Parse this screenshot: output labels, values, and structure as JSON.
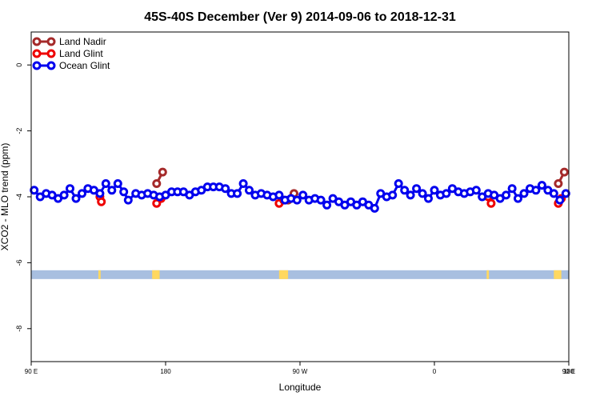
{
  "chart_data": {
    "type": "line",
    "title": "45S-40S December (Ver 9)   2014-09-06 to 2018-12-31",
    "xlabel": "Longitude",
    "ylabel": "XCO2 - MLO trend (ppm)",
    "xlim": [
      90,
      450
    ],
    "ylim": [
      -9,
      1
    ],
    "x_ticks": [
      {
        "value": 90,
        "label": "90 E"
      },
      {
        "value": 180,
        "label": "180"
      },
      {
        "value": 270,
        "label": "90 W"
      },
      {
        "value": 360,
        "label": "0"
      },
      {
        "value": 450,
        "label": "90 E"
      },
      {
        "value": 540,
        "label": "180"
      }
    ],
    "y_ticks": [
      {
        "value": 0,
        "label": "0"
      },
      {
        "value": -2,
        "label": "-2"
      },
      {
        "value": -4,
        "label": "-4"
      },
      {
        "value": -6,
        "label": "-6"
      },
      {
        "value": -8,
        "label": "-8"
      }
    ],
    "legend_position": "top-left",
    "series": [
      {
        "name": "Land Nadir",
        "color": "#a52a2a",
        "segments": [
          [
            {
              "x": 174,
              "y": -3.6
            },
            {
              "x": 178,
              "y": -3.25
            }
          ],
          [
            {
              "x": 262,
              "y": -4.1
            },
            {
              "x": 266,
              "y": -3.9
            }
          ],
          [
            {
              "x": 443,
              "y": -3.6
            },
            {
              "x": 447,
              "y": -3.25
            }
          ]
        ]
      },
      {
        "name": "Land Glint",
        "color": "#ee0000",
        "segments": [
          [
            {
              "x": 136,
              "y": -4.0
            },
            {
              "x": 137,
              "y": -4.15
            }
          ],
          [
            {
              "x": 174,
              "y": -4.2
            },
            {
              "x": 177,
              "y": -4.05
            }
          ],
          [
            {
              "x": 256,
              "y": -4.2
            },
            {
              "x": 259,
              "y": -4.1
            }
          ],
          [
            {
              "x": 396,
              "y": -4.0
            },
            {
              "x": 398,
              "y": -4.2
            }
          ],
          [
            {
              "x": 443,
              "y": -4.2
            },
            {
              "x": 445,
              "y": -4.05
            }
          ]
        ]
      },
      {
        "name": "Ocean Glint",
        "color": "#0000ee",
        "points": [
          {
            "x": 92,
            "y": -3.8
          },
          {
            "x": 96,
            "y": -4.0
          },
          {
            "x": 100,
            "y": -3.9
          },
          {
            "x": 104,
            "y": -3.95
          },
          {
            "x": 108,
            "y": -4.05
          },
          {
            "x": 112,
            "y": -3.95
          },
          {
            "x": 116,
            "y": -3.75
          },
          {
            "x": 120,
            "y": -4.05
          },
          {
            "x": 124,
            "y": -3.9
          },
          {
            "x": 128,
            "y": -3.75
          },
          {
            "x": 132,
            "y": -3.8
          },
          {
            "x": 136,
            "y": -3.9
          },
          {
            "x": 140,
            "y": -3.6
          },
          {
            "x": 144,
            "y": -3.8
          },
          {
            "x": 148,
            "y": -3.6
          },
          {
            "x": 152,
            "y": -3.85
          },
          {
            "x": 155,
            "y": -4.1
          },
          {
            "x": 160,
            "y": -3.9
          },
          {
            "x": 164,
            "y": -3.95
          },
          {
            "x": 168,
            "y": -3.9
          },
          {
            "x": 172,
            "y": -3.95
          },
          {
            "x": 176,
            "y": -4.0
          },
          {
            "x": 180,
            "y": -3.95
          },
          {
            "x": 184,
            "y": -3.85
          },
          {
            "x": 188,
            "y": -3.85
          },
          {
            "x": 192,
            "y": -3.85
          },
          {
            "x": 196,
            "y": -3.95
          },
          {
            "x": 200,
            "y": -3.85
          },
          {
            "x": 204,
            "y": -3.8
          },
          {
            "x": 208,
            "y": -3.7
          },
          {
            "x": 212,
            "y": -3.7
          },
          {
            "x": 216,
            "y": -3.7
          },
          {
            "x": 220,
            "y": -3.75
          },
          {
            "x": 224,
            "y": -3.9
          },
          {
            "x": 228,
            "y": -3.9
          },
          {
            "x": 232,
            "y": -3.6
          },
          {
            "x": 236,
            "y": -3.8
          },
          {
            "x": 240,
            "y": -3.95
          },
          {
            "x": 244,
            "y": -3.9
          },
          {
            "x": 248,
            "y": -3.95
          },
          {
            "x": 252,
            "y": -4.0
          },
          {
            "x": 256,
            "y": -3.95
          },
          {
            "x": 260,
            "y": -4.1
          },
          {
            "x": 264,
            "y": -4.05
          },
          {
            "x": 268,
            "y": -4.1
          },
          {
            "x": 272,
            "y": -3.95
          },
          {
            "x": 276,
            "y": -4.1
          },
          {
            "x": 280,
            "y": -4.05
          },
          {
            "x": 284,
            "y": -4.1
          },
          {
            "x": 288,
            "y": -4.25
          },
          {
            "x": 292,
            "y": -4.05
          },
          {
            "x": 296,
            "y": -4.15
          },
          {
            "x": 300,
            "y": -4.25
          },
          {
            "x": 304,
            "y": -4.15
          },
          {
            "x": 308,
            "y": -4.25
          },
          {
            "x": 312,
            "y": -4.15
          },
          {
            "x": 316,
            "y": -4.25
          },
          {
            "x": 320,
            "y": -4.35
          },
          {
            "x": 324,
            "y": -3.9
          },
          {
            "x": 328,
            "y": -4.0
          },
          {
            "x": 332,
            "y": -3.95
          },
          {
            "x": 336,
            "y": -3.6
          },
          {
            "x": 340,
            "y": -3.8
          },
          {
            "x": 344,
            "y": -3.95
          },
          {
            "x": 348,
            "y": -3.75
          },
          {
            "x": 352,
            "y": -3.9
          },
          {
            "x": 356,
            "y": -4.05
          },
          {
            "x": 360,
            "y": -3.8
          },
          {
            "x": 364,
            "y": -3.95
          },
          {
            "x": 368,
            "y": -3.9
          },
          {
            "x": 372,
            "y": -3.75
          },
          {
            "x": 376,
            "y": -3.85
          },
          {
            "x": 380,
            "y": -3.9
          },
          {
            "x": 384,
            "y": -3.85
          },
          {
            "x": 388,
            "y": -3.8
          },
          {
            "x": 392,
            "y": -4.0
          },
          {
            "x": 396,
            "y": -3.9
          },
          {
            "x": 400,
            "y": -3.95
          },
          {
            "x": 404,
            "y": -4.05
          },
          {
            "x": 408,
            "y": -3.95
          },
          {
            "x": 412,
            "y": -3.75
          },
          {
            "x": 416,
            "y": -4.05
          },
          {
            "x": 420,
            "y": -3.9
          },
          {
            "x": 424,
            "y": -3.75
          },
          {
            "x": 428,
            "y": -3.8
          },
          {
            "x": 432,
            "y": -3.65
          },
          {
            "x": 436,
            "y": -3.8
          },
          {
            "x": 440,
            "y": -3.9
          },
          {
            "x": 444,
            "y": -4.1
          },
          {
            "x": 448,
            "y": -3.9
          }
        ]
      }
    ],
    "land_ocean_strip": {
      "y_center": -6.35,
      "ocean_color": "#a8bfe0",
      "land_color": "#ffd860",
      "land_ranges": [
        [
          135,
          136.5
        ],
        [
          171,
          176
        ],
        [
          256,
          262
        ],
        [
          395,
          396.5
        ],
        [
          440,
          445
        ]
      ]
    }
  }
}
